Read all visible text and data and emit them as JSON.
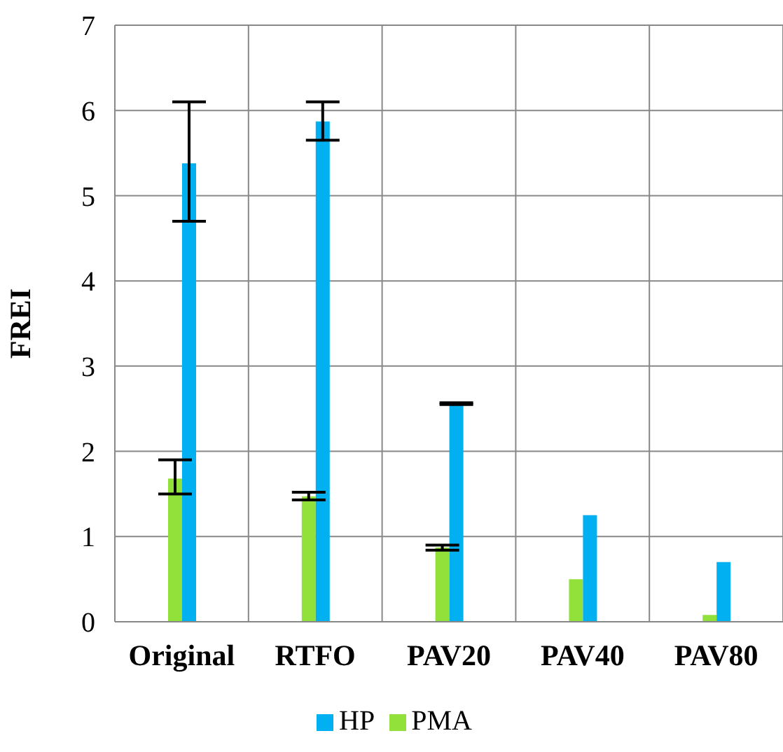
{
  "chart_data": {
    "type": "bar",
    "ylabel": "FREI",
    "categories": [
      "Original",
      "RTFO",
      "PAV20",
      "PAV40",
      "PAV80"
    ],
    "series": [
      {
        "name": "PMA",
        "color": "#92e03a",
        "values": [
          1.68,
          1.47,
          0.87,
          0.5,
          0.08
        ],
        "errors": [
          [
            1.5,
            1.9
          ],
          [
            1.43,
            1.52
          ],
          [
            0.84,
            0.9
          ],
          null,
          null
        ]
      },
      {
        "name": "HP",
        "color": "#00b0f0",
        "values": [
          5.38,
          5.87,
          2.56,
          1.25,
          0.7
        ],
        "errors": [
          [
            4.7,
            6.1
          ],
          [
            5.65,
            6.1
          ],
          [
            2.55,
            2.57
          ],
          null,
          null
        ]
      }
    ],
    "ylim": [
      0,
      7
    ],
    "yticks": [
      0,
      1,
      2,
      3,
      4,
      5,
      6,
      7
    ],
    "grid": true,
    "legend": "bottom"
  }
}
